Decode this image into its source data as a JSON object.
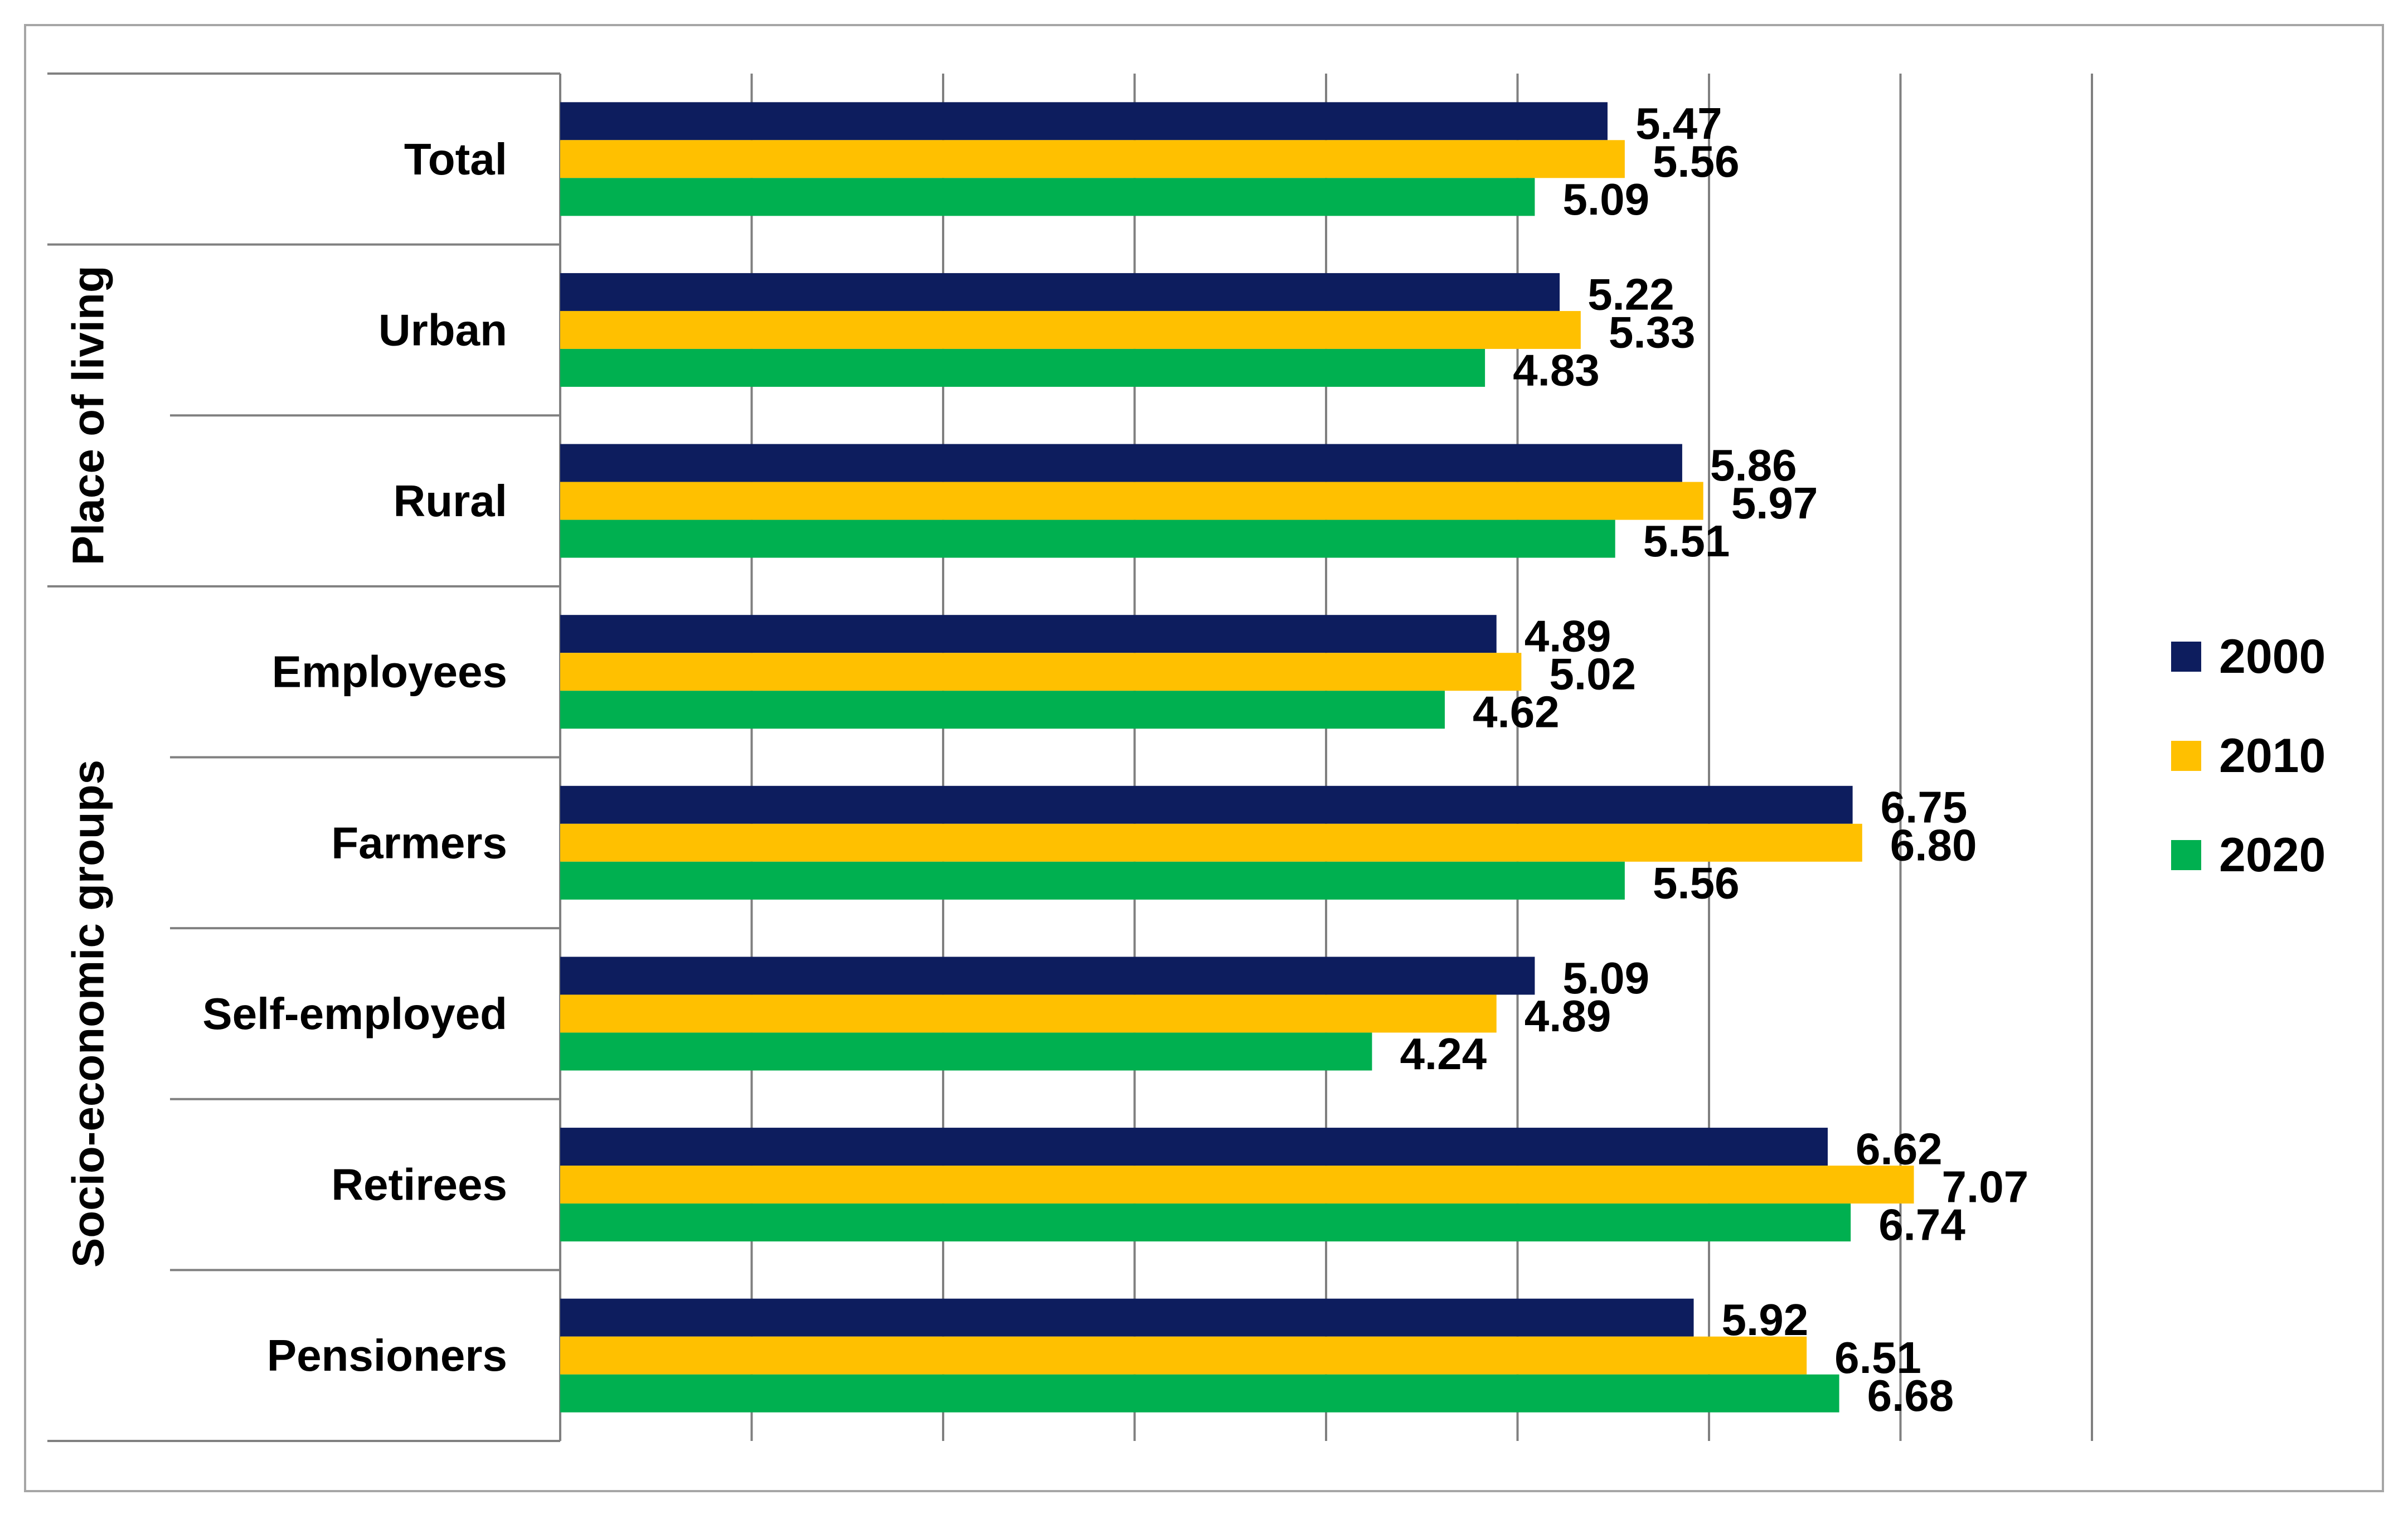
{
  "chart_data": {
    "type": "bar",
    "orientation": "horizontal",
    "title": "",
    "xlabel": "",
    "ylabel": "",
    "xlim": [
      0,
      8
    ],
    "grid": true,
    "legend_position": "right",
    "group_labels": [
      {
        "label": "Place of living",
        "categories": [
          "Urban",
          "Rural"
        ]
      },
      {
        "label": "Socio-economic groups",
        "categories": [
          "Employees",
          "Farmers",
          "Self-employed",
          "Retirees",
          "Pensioners"
        ]
      }
    ],
    "categories": [
      "Total",
      "Urban",
      "Rural",
      "Employees",
      "Farmers",
      "Self-employed",
      "Retirees",
      "Pensioners"
    ],
    "series": [
      {
        "name": "2000",
        "color": "#0d1d5e",
        "values": [
          5.47,
          5.22,
          5.86,
          4.89,
          6.75,
          5.09,
          6.62,
          5.92
        ],
        "labels": [
          "5.47",
          "5.22",
          "5.86",
          "4.89",
          "6.75",
          "5.09",
          "6.62",
          "5.92"
        ]
      },
      {
        "name": "2010",
        "color": "#ffc000",
        "values": [
          5.56,
          5.33,
          5.97,
          5.02,
          6.8,
          4.89,
          7.07,
          6.51
        ],
        "labels": [
          "5.56",
          "5.33",
          "5.97",
          "5.02",
          "6.80",
          "4.89",
          "7.07",
          "6.51"
        ]
      },
      {
        "name": "2020",
        "color": "#00b050",
        "values": [
          5.09,
          4.83,
          5.51,
          4.62,
          5.56,
          4.24,
          6.74,
          6.68
        ],
        "labels": [
          "5.09",
          "4.83",
          "5.51",
          "4.62",
          "5.56",
          "4.24",
          "6.74",
          "6.68"
        ]
      }
    ]
  }
}
